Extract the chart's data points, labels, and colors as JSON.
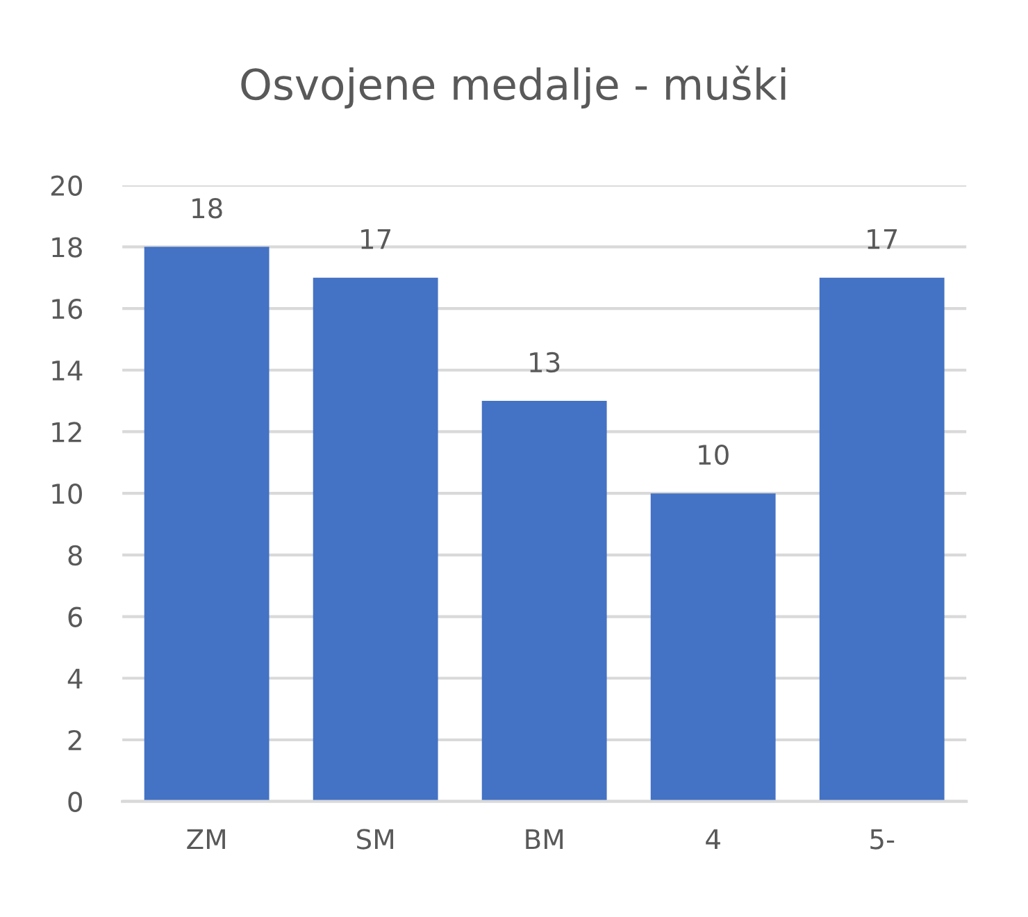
{
  "chart_data": {
    "type": "bar",
    "title": "Osvojene medalje - muški",
    "categories": [
      "ZM",
      "SM",
      "BM",
      "4",
      "5-"
    ],
    "values": [
      18,
      17,
      13,
      10,
      17
    ],
    "color": "#4472c4",
    "ylim": [
      0,
      20
    ],
    "yticks": [
      0,
      2,
      4,
      6,
      8,
      10,
      12,
      14,
      16,
      18,
      20
    ],
    "grid": "y",
    "data_labels": true
  }
}
